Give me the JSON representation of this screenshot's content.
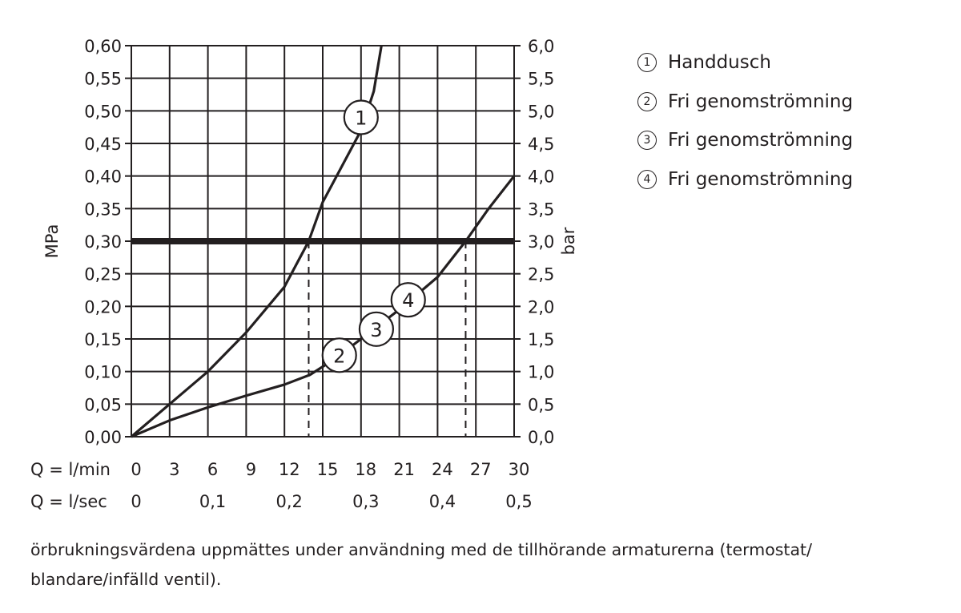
{
  "chart_data": {
    "type": "line",
    "xlabel_rows": [
      {
        "label": "Q = l/min",
        "ticks": [
          "0",
          "3",
          "6",
          "9",
          "12",
          "15",
          "18",
          "21",
          "24",
          "27",
          "30"
        ]
      },
      {
        "label": "Q = l/sec",
        "ticks": [
          "0",
          "0,1",
          "0,2",
          "0,3",
          "0,4",
          "0,5"
        ]
      }
    ],
    "xlim": [
      0,
      30
    ],
    "ylim": [
      0,
      0.6
    ],
    "ylabel_left": "MPa",
    "ylabel_right": "bar",
    "yticks_left": [
      "0,00",
      "0,05",
      "0,10",
      "0,15",
      "0,20",
      "0,25",
      "0,30",
      "0,35",
      "0,40",
      "0,45",
      "0,50",
      "0,55",
      "0,60"
    ],
    "yticks_right": [
      "0,0",
      "0,5",
      "1,0",
      "1,5",
      "2,0",
      "2,5",
      "3,0",
      "3,5",
      "4,0",
      "4,5",
      "5,0",
      "5,5",
      "6,0"
    ],
    "grid": true,
    "reference_line": {
      "y": 0.3
    },
    "reference_drops": [
      {
        "x": 13.9
      },
      {
        "x": 26.2
      }
    ],
    "series": [
      {
        "name": "Handdusch",
        "marker_label": "1",
        "marker_at": [
          18.0,
          0.49
        ],
        "x": [
          0,
          3,
          6,
          9,
          12,
          13.9,
          15,
          18,
          19,
          19.6
        ],
        "y": [
          0,
          0.05,
          0.1,
          0.16,
          0.23,
          0.3,
          0.36,
          0.47,
          0.53,
          0.6
        ]
      },
      {
        "name": "Fri genomströmning",
        "marker_label": "2",
        "marker_at": [
          16.3,
          0.125
        ],
        "x": [],
        "y": []
      },
      {
        "name": "Fri genomströmning",
        "marker_label": "3",
        "marker_at": [
          19.2,
          0.165
        ],
        "x": [],
        "y": []
      },
      {
        "name": "Fri genomströmning",
        "marker_label": "4",
        "marker_at": [
          21.7,
          0.21
        ],
        "x": [
          0,
          3,
          6,
          9,
          12,
          14,
          16,
          18,
          21,
          24,
          26.2,
          28,
          30
        ],
        "y": [
          0,
          0.025,
          0.045,
          0.063,
          0.08,
          0.095,
          0.12,
          0.15,
          0.195,
          0.245,
          0.3,
          0.35,
          0.4
        ]
      }
    ]
  },
  "legend": [
    {
      "num": "1",
      "label": "Handdusch"
    },
    {
      "num": "2",
      "label": "Fri genomströmning"
    },
    {
      "num": "3",
      "label": "Fri genomströmning"
    },
    {
      "num": "4",
      "label": "Fri genomströmning"
    }
  ],
  "footnote": "örbrukningsvärdena uppmättes under användning med de tillhörande armaturerna (termostat/ blandare/infälld ventil)."
}
